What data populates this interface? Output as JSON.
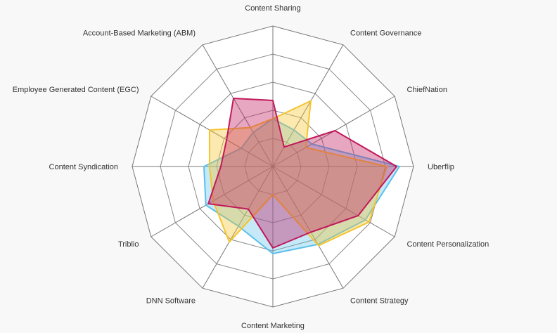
{
  "chart_data": {
    "type": "radar",
    "axes": [
      "Content Sharing",
      "Content Governance",
      "ChiefNation",
      "Uberflip",
      "Content Personalization",
      "Content Strategy",
      "Content Marketing",
      "DNN Software",
      "Triblio",
      "Content Syndication",
      "Employee Generated Content (EGC)",
      "Account-Based Marketing (ABM)"
    ],
    "scale_max": 10,
    "rings": 5,
    "series": [
      {
        "color": "#5bc0eb",
        "fill": "rgba(91,192,235,0.35)",
        "values": [
          3.4,
          3.0,
          3.2,
          9.0,
          7.6,
          6.4,
          6.2,
          4.9,
          5.5,
          4.9,
          2.6,
          2.8
        ]
      },
      {
        "color": "#f4c430",
        "fill": "rgba(244,196,48,0.38)",
        "values": [
          3.4,
          5.4,
          2.7,
          8.1,
          7.9,
          6.5,
          2.0,
          6.2,
          4.9,
          4.5,
          5.2,
          3.2
        ]
      },
      {
        "color": "#c2185b",
        "fill": "rgba(194,24,91,0.38)",
        "values": [
          4.7,
          1.6,
          5.1,
          8.8,
          7.0,
          5.4,
          5.8,
          3.5,
          5.3,
          3.7,
          3.8,
          5.6
        ]
      }
    ]
  }
}
